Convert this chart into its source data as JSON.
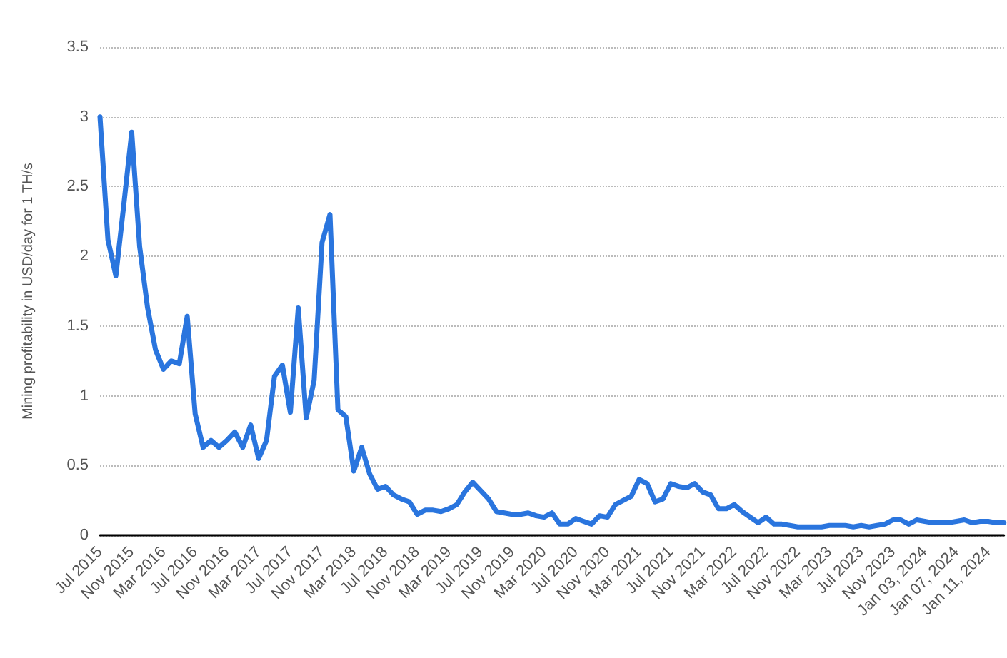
{
  "chart_data": {
    "type": "line",
    "ylabel": "Mining profitability in USD/day for 1 TH/s",
    "categories": [
      "Jul 2015",
      null,
      null,
      null,
      "Nov 2015",
      null,
      null,
      null,
      "Mar 2016",
      null,
      null,
      null,
      "Jul 2016",
      null,
      null,
      null,
      "Nov 2016",
      null,
      null,
      null,
      "Mar 2017",
      null,
      null,
      null,
      "Jul 2017",
      null,
      null,
      null,
      "Nov 2017",
      null,
      null,
      null,
      "Mar 2018",
      null,
      null,
      null,
      "Jul 2018",
      null,
      null,
      null,
      "Nov 2018",
      null,
      null,
      null,
      "Mar 2019",
      null,
      null,
      null,
      "Jul 2019",
      null,
      null,
      null,
      "Nov 2019",
      null,
      null,
      null,
      "Mar 2020",
      null,
      null,
      null,
      "Jul 2020",
      null,
      null,
      null,
      "Nov 2020",
      null,
      null,
      null,
      "Mar 2021",
      null,
      null,
      null,
      "Jul 2021",
      null,
      null,
      null,
      "Nov 2021",
      null,
      null,
      null,
      "Mar 2022",
      null,
      null,
      null,
      "Jul 2022",
      null,
      null,
      null,
      "Nov 2022",
      null,
      null,
      null,
      "Mar 2023",
      null,
      null,
      null,
      "Jul 2023",
      null,
      null,
      null,
      "Nov 2023",
      null,
      null,
      null,
      "Jan 03, 2024",
      null,
      null,
      null,
      "Jan 07, 2024",
      null,
      null,
      null,
      "Jan 11, 2024",
      null,
      null
    ],
    "series": [
      {
        "color": "#2a75de",
        "values": [
          3.0,
          2.12,
          1.86,
          2.37,
          2.89,
          2.07,
          1.63,
          1.33,
          1.19,
          1.25,
          1.23,
          1.57,
          0.87,
          0.63,
          0.68,
          0.63,
          0.68,
          0.74,
          0.63,
          0.79,
          0.55,
          0.68,
          1.14,
          1.22,
          0.88,
          1.63,
          0.84,
          1.11,
          2.1,
          2.3,
          0.9,
          0.85,
          0.46,
          0.63,
          0.44,
          0.33,
          0.35,
          0.29,
          0.26,
          0.24,
          0.15,
          0.18,
          0.18,
          0.17,
          0.19,
          0.22,
          0.31,
          0.38,
          0.32,
          0.26,
          0.17,
          0.16,
          0.15,
          0.15,
          0.16,
          0.14,
          0.13,
          0.16,
          0.08,
          0.08,
          0.12,
          0.1,
          0.08,
          0.14,
          0.13,
          0.22,
          0.25,
          0.28,
          0.4,
          0.37,
          0.24,
          0.26,
          0.37,
          0.35,
          0.34,
          0.37,
          0.31,
          0.29,
          0.19,
          0.19,
          0.22,
          0.17,
          0.13,
          0.09,
          0.13,
          0.08,
          0.08,
          0.07,
          0.06,
          0.06,
          0.06,
          0.06,
          0.07,
          0.07,
          0.07,
          0.06,
          0.07,
          0.06,
          0.07,
          0.08,
          0.11,
          0.11,
          0.08,
          0.11,
          0.1,
          0.09,
          0.09,
          0.09,
          0.1,
          0.11,
          0.09,
          0.1,
          0.1,
          0.09,
          0.09
        ]
      }
    ],
    "ylim": [
      0,
      3.5
    ],
    "yticks": [
      0,
      0.5,
      1,
      1.5,
      2,
      2.5,
      3,
      3.5
    ],
    "grid": "y",
    "marker": "none",
    "line_style": "solid"
  }
}
